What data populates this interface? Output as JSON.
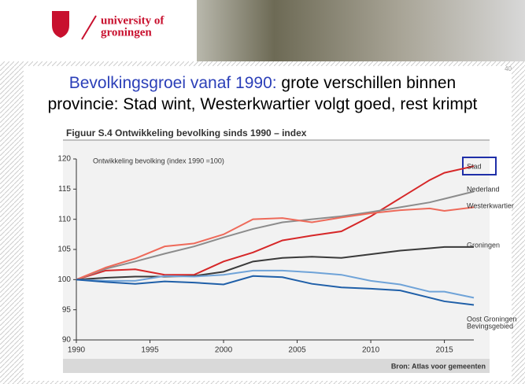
{
  "logo": {
    "line1": "university of",
    "line2": "groningen"
  },
  "page_number": "40",
  "slide_title": {
    "highlight": "Bevolkingsgroei vanaf 1990:",
    "rest_line1": " grote verschillen binnen",
    "line2": "provincie: Stad wint, Westerkwartier volgt goed, rest krimpt"
  },
  "chart_data": {
    "type": "line",
    "title": "Figuur S.4   Ontwikkeling bevolking sinds 1990 – index",
    "subtitle": "Ontwikkeling bevolking (index 1990 =100)",
    "source": "Bron: Atlas voor gemeenten",
    "x": [
      1990,
      1992,
      1994,
      1996,
      1998,
      2000,
      2002,
      2004,
      2006,
      2008,
      2010,
      2012,
      2014,
      2015,
      2017
    ],
    "xlim": [
      1990,
      2017
    ],
    "xticks": [
      1990,
      1995,
      2000,
      2005,
      2010,
      2015
    ],
    "ylim": [
      90,
      120
    ],
    "yticks": [
      90,
      95,
      100,
      105,
      110,
      115,
      120
    ],
    "series": [
      {
        "name": "Stad",
        "color": "#d62728",
        "values": [
          100,
          101.5,
          101.7,
          100.8,
          100.8,
          103,
          104.5,
          106.5,
          107.3,
          108,
          110.5,
          113.5,
          116.5,
          117.7,
          118.8
        ]
      },
      {
        "name": "Nederland",
        "color": "#8c8c8c",
        "values": [
          100,
          101.8,
          103,
          104.3,
          105.5,
          107,
          108.4,
          109.5,
          110,
          110.5,
          111.2,
          112,
          112.8,
          113.4,
          114.6
        ]
      },
      {
        "name": "Westerkwartier",
        "color": "#ee6a5a",
        "values": [
          100,
          102,
          103.5,
          105.5,
          106,
          107.5,
          110,
          110.2,
          109.5,
          110.3,
          111,
          111.5,
          111.8,
          111.4,
          112
        ]
      },
      {
        "name": "Groningen",
        "color": "#3a3a3a",
        "values": [
          100,
          100.3,
          100.5,
          100.5,
          100.6,
          101.3,
          103,
          103.6,
          103.8,
          103.6,
          104.2,
          104.8,
          105.2,
          105.4,
          105.4
        ]
      },
      {
        "name": "Oost Groningen",
        "color": "#6fa3d8",
        "values": [
          100,
          99.8,
          99.8,
          100.6,
          100.5,
          100.8,
          101.5,
          101.5,
          101.2,
          100.8,
          99.8,
          99.2,
          98,
          98,
          97
        ]
      },
      {
        "name": "Bevingsgebied",
        "color": "#1f5fa8",
        "values": [
          100,
          99.6,
          99.3,
          99.7,
          99.5,
          99.2,
          100.6,
          100.4,
          99.3,
          98.7,
          98.5,
          98.2,
          97,
          96.4,
          95.8
        ]
      }
    ]
  }
}
